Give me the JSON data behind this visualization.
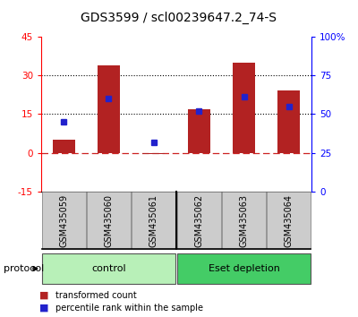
{
  "title": "GDS3599 / scl00239647.2_74-S",
  "samples": [
    "GSM435059",
    "GSM435060",
    "GSM435061",
    "GSM435062",
    "GSM435063",
    "GSM435064"
  ],
  "red_values": [
    5.0,
    34.0,
    -0.5,
    17.0,
    35.0,
    24.0
  ],
  "blue_percentiles": [
    45,
    60,
    32,
    52,
    61,
    55
  ],
  "ylim_left": [
    -15,
    45
  ],
  "ylim_right": [
    0,
    100
  ],
  "yticks_left": [
    -15,
    0,
    15,
    30,
    45
  ],
  "yticks_right": [
    0,
    25,
    50,
    75,
    100
  ],
  "ytick_labels_left": [
    "-15",
    "0",
    "15",
    "30",
    "45"
  ],
  "ytick_labels_right": [
    "0",
    "25",
    "50",
    "75",
    "100%"
  ],
  "hlines": [
    15,
    30
  ],
  "bar_color": "#b22222",
  "dot_color": "#2222cc",
  "zero_line_color": "#cc2222",
  "group_colors": [
    "#b8f0b8",
    "#44cc66"
  ],
  "group_labels": [
    "control",
    "Eset depletion"
  ],
  "protocol_label": "protocol",
  "legend_red": "transformed count",
  "legend_blue": "percentile rank within the sample",
  "title_fontsize": 10,
  "tick_fontsize": 7.5,
  "label_fontsize": 7,
  "bar_width": 0.5,
  "background_color": "#ffffff"
}
